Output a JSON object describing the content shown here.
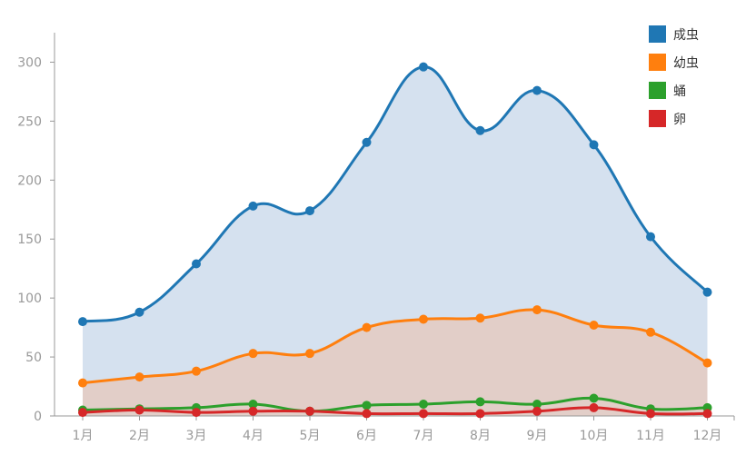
{
  "chart_data": {
    "type": "area",
    "categories": [
      "1月",
      "2月",
      "3月",
      "4月",
      "5月",
      "6月",
      "7月",
      "8月",
      "9月",
      "10月",
      "11月",
      "12月"
    ],
    "series": [
      {
        "name": "成虫",
        "values": [
          80,
          88,
          129,
          178,
          174,
          232,
          296,
          242,
          276,
          230,
          152,
          105
        ],
        "color": "#1f77b4",
        "fill": "#d5e1ef"
      },
      {
        "name": "幼虫",
        "values": [
          28,
          33,
          38,
          53,
          53,
          75,
          82,
          83,
          90,
          77,
          71,
          45
        ],
        "color": "#ff7f0e",
        "fill": "#e2cec8"
      },
      {
        "name": "蛹",
        "values": [
          5,
          6,
          7,
          10,
          4,
          9,
          10,
          12,
          10,
          15,
          6,
          7
        ],
        "color": "#2ca02c",
        "fill": "none"
      },
      {
        "name": "卵",
        "values": [
          3,
          5,
          3,
          4,
          4,
          2,
          2,
          2,
          4,
          7,
          2,
          2
        ],
        "color": "#d62728",
        "fill": "none"
      }
    ],
    "yticks": [
      0,
      50,
      100,
      150,
      200,
      250,
      300
    ],
    "ylim": [
      0,
      325
    ],
    "legend_position": "top-right",
    "grid": false
  }
}
